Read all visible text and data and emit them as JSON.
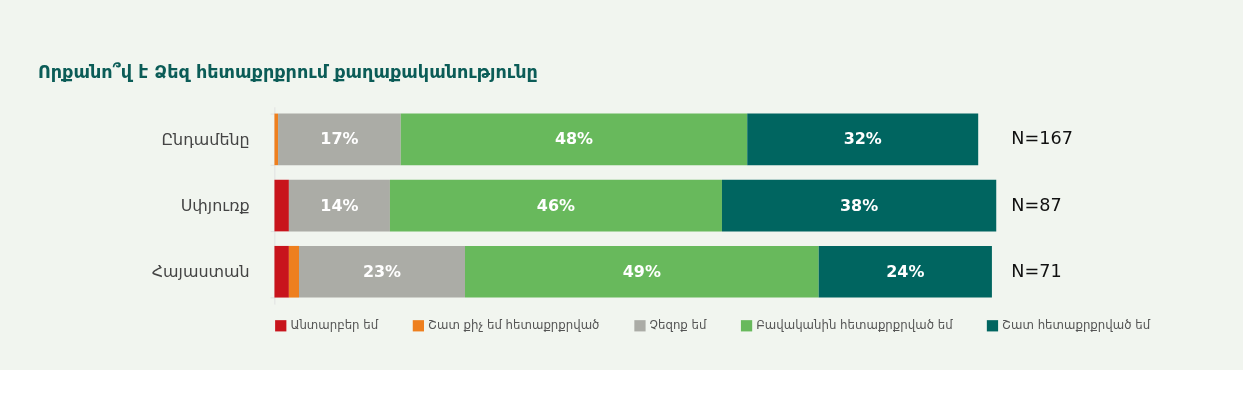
{
  "chart_data": {
    "type": "bar",
    "orientation": "horizontal",
    "stacked": true,
    "title": "Որքանո՞վ է Ձեզ հետաքրքրում քաղաքականությունը",
    "categories": [
      "Ընդամենը",
      "Սփյուռք",
      "Հայաստան"
    ],
    "series": [
      {
        "name": "Անտարբեր եմ",
        "color": "#c8141c",
        "values": [
          0,
          2,
          2
        ],
        "value_labels": [
          null,
          null,
          null
        ]
      },
      {
        "name": "Շատ քիչ եմ հետաքրքրված",
        "color": "#ee7f1e",
        "values": [
          0.5,
          0,
          1.4
        ],
        "value_labels": [
          null,
          null,
          null
        ]
      },
      {
        "name": "Չեզոք եմ",
        "color": "#abaca6",
        "values": [
          17,
          14,
          23
        ],
        "value_labels": [
          "17%",
          "14%",
          "23%"
        ]
      },
      {
        "name": "Բավականին հետաքրքրված եմ",
        "color": "#68b95c",
        "values": [
          48,
          46,
          49
        ],
        "value_labels": [
          "48%",
          "46%",
          "49%"
        ]
      },
      {
        "name": "Շատ հետաքրքրված եմ",
        "color": "#006560",
        "values": [
          32,
          38,
          24
        ],
        "value_labels": [
          "32%",
          "38%",
          "24%"
        ]
      }
    ],
    "annotations": [
      "N=167",
      "N=87",
      "N=71"
    ],
    "legend": "bottom",
    "grid": false
  }
}
